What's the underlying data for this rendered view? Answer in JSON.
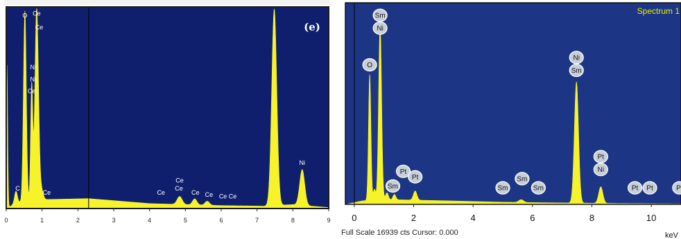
{
  "chart_data": [
    {
      "type": "area",
      "panel_label": "(e)",
      "xlim": [
        0,
        9
      ],
      "x_ticks": [
        "0",
        "1",
        "2",
        "3",
        "4",
        "5",
        "6",
        "7",
        "8",
        "9"
      ],
      "colors": {
        "background": "#0f1f6e",
        "fill": "#f6f32a",
        "frame": "#1a1a1a",
        "label": "#ffffff"
      },
      "peaks": [
        {
          "x": 0.02,
          "h": 0.72,
          "w": 0.02
        },
        {
          "x": 0.27,
          "h": 0.06,
          "w": 0.04
        },
        {
          "x": 0.52,
          "h": 0.96,
          "w": 0.04
        },
        {
          "x": 0.71,
          "h": 0.58,
          "w": 0.03
        },
        {
          "x": 0.85,
          "h": 0.97,
          "w": 0.05
        },
        {
          "x": 0.98,
          "h": 0.05,
          "w": 0.05
        },
        {
          "x": 4.84,
          "h": 0.04,
          "w": 0.07
        },
        {
          "x": 5.26,
          "h": 0.03,
          "w": 0.06
        },
        {
          "x": 5.61,
          "h": 0.02,
          "w": 0.06
        },
        {
          "x": 7.48,
          "h": 0.99,
          "w": 0.07
        },
        {
          "x": 8.26,
          "h": 0.18,
          "w": 0.07
        }
      ],
      "background_curve": [
        {
          "x": 0.0,
          "y": 0.0
        },
        {
          "x": 0.3,
          "y": 0.03
        },
        {
          "x": 1.0,
          "y": 0.045
        },
        {
          "x": 2.3,
          "y": 0.05
        },
        {
          "x": 4.0,
          "y": 0.025
        },
        {
          "x": 6.0,
          "y": 0.015
        },
        {
          "x": 7.2,
          "y": 0.012
        },
        {
          "x": 8.0,
          "y": 0.02
        },
        {
          "x": 9.0,
          "y": 0.005
        }
      ],
      "labels": [
        {
          "text": "O",
          "x": 0.52,
          "y": 0.96
        },
        {
          "text": "Ce",
          "x": 0.85,
          "y": 0.97
        },
        {
          "text": "Ce",
          "x": 0.92,
          "y": 0.9
        },
        {
          "text": "Ni",
          "x": 0.75,
          "y": 0.7
        },
        {
          "text": "Ni",
          "x": 0.75,
          "y": 0.64
        },
        {
          "text": "Ce",
          "x": 0.71,
          "y": 0.58
        },
        {
          "text": "C",
          "x": 0.32,
          "y": 0.09
        },
        {
          "text": "Ce",
          "x": 1.13,
          "y": 0.07
        },
        {
          "text": "Ce",
          "x": 4.84,
          "y": 0.13
        },
        {
          "text": "Ce",
          "x": 4.82,
          "y": 0.09
        },
        {
          "text": "Ce",
          "x": 4.32,
          "y": 0.07
        },
        {
          "text": "Ce",
          "x": 5.28,
          "y": 0.07
        },
        {
          "text": "Ce",
          "x": 5.66,
          "y": 0.06
        },
        {
          "text": "Ce",
          "x": 6.05,
          "y": 0.05
        },
        {
          "text": "Ce",
          "x": 6.32,
          "y": 0.05
        },
        {
          "text": "Ni",
          "x": 8.26,
          "y": 0.22
        }
      ],
      "cursor_x": 2.3
    },
    {
      "type": "area",
      "title": "Spectrum 1",
      "xlabel": "keV",
      "xlim": [
        -0.3,
        11.0
      ],
      "x_ticks": [
        "0",
        "2",
        "4",
        "6",
        "8",
        "10"
      ],
      "footer": "Full Scale 16939 cts Cursor: 0.000",
      "colors": {
        "background": "#1d3585",
        "fill": "#f6f32a",
        "frame": "#111111",
        "bubble_fill": "#c6cfd8",
        "bubble_stroke": "#ffffff",
        "title": "#e8f000"
      },
      "peaks": [
        {
          "x": 0.52,
          "h": 0.69,
          "w": 0.04
        },
        {
          "x": 0.68,
          "h": 0.06,
          "w": 0.04
        },
        {
          "x": 0.87,
          "h": 0.96,
          "w": 0.05
        },
        {
          "x": 1.1,
          "h": 0.04,
          "w": 0.05
        },
        {
          "x": 1.35,
          "h": 0.03,
          "w": 0.05
        },
        {
          "x": 2.05,
          "h": 0.05,
          "w": 0.06
        },
        {
          "x": 5.62,
          "h": 0.015,
          "w": 0.08
        },
        {
          "x": 7.48,
          "h": 0.66,
          "w": 0.07
        },
        {
          "x": 8.3,
          "h": 0.09,
          "w": 0.07
        }
      ],
      "background_curve": [
        {
          "x": -0.3,
          "y": 0.0
        },
        {
          "x": 0.3,
          "y": 0.02
        },
        {
          "x": 1.5,
          "y": 0.025
        },
        {
          "x": 3.0,
          "y": 0.02
        },
        {
          "x": 5.0,
          "y": 0.012
        },
        {
          "x": 7.0,
          "y": 0.008
        },
        {
          "x": 9.0,
          "y": 0.005
        },
        {
          "x": 11.0,
          "y": 0.003
        }
      ],
      "labels": [
        {
          "text": "Sm",
          "x": 0.87,
          "y": 1.03
        },
        {
          "text": "Ni",
          "x": 0.87,
          "y": 0.96
        },
        {
          "text": "O",
          "x": 0.52,
          "y": 0.76
        },
        {
          "text": "Pt",
          "x": 1.65,
          "y": 0.18
        },
        {
          "text": "Pt",
          "x": 2.05,
          "y": 0.15
        },
        {
          "text": "Sm",
          "x": 1.3,
          "y": 0.1
        },
        {
          "text": "Sm",
          "x": 5.65,
          "y": 0.14
        },
        {
          "text": "Sm",
          "x": 5.0,
          "y": 0.09
        },
        {
          "text": "Sm",
          "x": 6.2,
          "y": 0.09
        },
        {
          "text": "Ni",
          "x": 7.48,
          "y": 0.8
        },
        {
          "text": "Sm",
          "x": 7.48,
          "y": 0.73
        },
        {
          "text": "Pt",
          "x": 8.3,
          "y": 0.26
        },
        {
          "text": "Ni",
          "x": 8.3,
          "y": 0.19
        },
        {
          "text": "Pt",
          "x": 9.45,
          "y": 0.09
        },
        {
          "text": "Pt",
          "x": 9.95,
          "y": 0.09
        },
        {
          "text": "Pt",
          "x": 10.95,
          "y": 0.09
        }
      ],
      "cursor_x": 0.0
    }
  ]
}
